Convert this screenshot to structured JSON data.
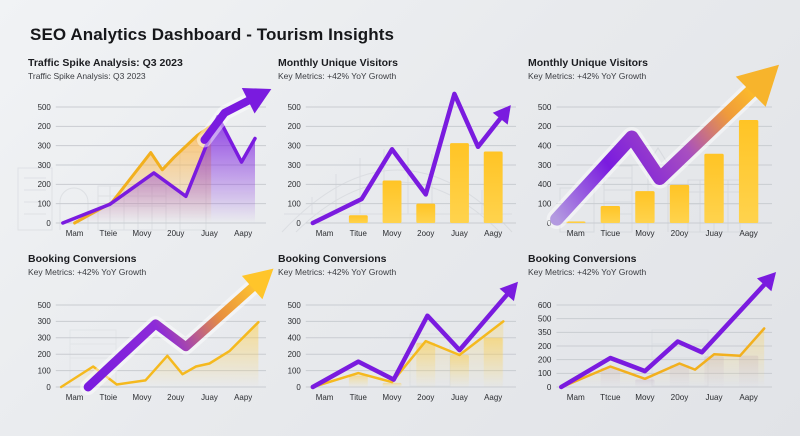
{
  "page": {
    "title": "SEO Analytics Dashboard - Tourism Insights"
  },
  "palette": {
    "purple": "#7a1bdf",
    "gold": "#ffc425",
    "goldDeep": "#f2b01e",
    "grid": "#c9ccd1",
    "axisText": "#2a2c30",
    "background": "#e8eaed"
  },
  "chart_data": [
    {
      "type": "area",
      "title": "Traffic Spike Analysis: Q3 2023",
      "subtitle": "Traffic Spike Analysis: Q3 2023",
      "y_labels": [
        "500",
        "200",
        "300",
        "300",
        "200",
        "100",
        "0"
      ],
      "x_labels": [
        "Mam",
        "Tteie",
        "Movy",
        "20uy",
        "Juay",
        "Aapy"
      ],
      "ylim": [
        0,
        600
      ],
      "series": [
        {
          "name": "gold-area",
          "kind": "area",
          "color": "#f2b01e",
          "lw": 3,
          "fill": "#ffb341",
          "fillop": 0.75,
          "x": [
            0,
            1.1,
            2.26,
            2.6,
            2.95,
            3.64,
            4.05
          ],
          "y": [
            0,
            105,
            364,
            275,
            340,
            453,
            502
          ]
        },
        {
          "name": "purple-area",
          "kind": "area",
          "color": "#7a1bdf",
          "lw": 3.5,
          "fill": "#7a1bdf",
          "fillop": 0.82,
          "x": [
            -0.35,
            1.05,
            2.35,
            3.3,
            4.25,
            4.95,
            5.35
          ],
          "y": [
            0,
            97,
            259,
            138,
            550,
            315,
            437
          ]
        },
        {
          "name": "purple-arrow",
          "kind": "line",
          "color": "#7a1bdf",
          "lw": 8,
          "arrow": true,
          "halo": true,
          "x": [
            3.85,
            4.45,
            5.35
          ],
          "y": [
            430,
            570,
            650
          ]
        }
      ]
    },
    {
      "type": "bar+line",
      "title": "Monthly Unique Visitors",
      "subtitle": "Key Metrics: +42% YoY Growth",
      "y_labels": [
        "500",
        "200",
        "300",
        "300",
        "200",
        "100",
        "0"
      ],
      "x_labels": [
        "Mam",
        "Titue",
        "Movy",
        "2ooy",
        "Juay",
        "Aagy"
      ],
      "ylim": [
        0,
        600
      ],
      "series": [
        {
          "name": "gold-bars",
          "kind": "bars",
          "color": "#ffc425",
          "color2": "#ffd34d",
          "fade": 1,
          "values": [
            0,
            40,
            220,
            100,
            413,
            370
          ]
        },
        {
          "name": "purple-line-arrow",
          "kind": "line",
          "color": "#7a1bdf",
          "lw": 4.5,
          "arrow": true,
          "x": [
            -0.35,
            1.1,
            2.0,
            3.0,
            3.85,
            4.55,
            5.3
          ],
          "y": [
            0,
            124,
            381,
            148,
            668,
            394,
            560
          ]
        }
      ]
    },
    {
      "type": "bar+arrow",
      "title": "Monthly Unique Visitors",
      "subtitle": "Key Metrics: +42% YoY Growth",
      "y_labels": [
        "500",
        "200",
        "400",
        "300",
        "400",
        "100",
        "0"
      ],
      "x_labels": [
        "Mam",
        "Ticue",
        "Movy",
        "20oy",
        "Juay",
        "Aagy"
      ],
      "ylim": [
        0,
        600
      ],
      "series": [
        {
          "name": "gold-bars",
          "kind": "bars",
          "color": "#ffc425",
          "color2": "#ffd34d",
          "fade": 1,
          "values": [
            8,
            88,
            165,
            197,
            358,
            533
          ]
        },
        {
          "name": "gradient-arrow",
          "kind": "line",
          "color": "#b39ae0",
          "to": "#ffc425",
          "lw": 13,
          "arrow": true,
          "halo": true,
          "head": "#f7b42c",
          "stops": [
            [
              0,
              "#b39ae0"
            ],
            [
              30,
              "#7a1bdf"
            ],
            [
              60,
              "#a84fc0"
            ],
            [
              82,
              "#ef9a3c"
            ],
            [
              100,
              "#ffc425"
            ]
          ],
          "x": [
            -0.55,
            1.62,
            2.43,
            5.3
          ],
          "y": [
            20,
            445,
            230,
            720
          ]
        }
      ]
    },
    {
      "type": "area+arrow",
      "title": "Booking Conversions",
      "subtitle": "Key Metrics: +42% YoY Growth",
      "y_labels": [
        "500",
        "300",
        "300",
        "200",
        "100",
        "0"
      ],
      "x_labels": [
        "Mam",
        "Ttoie",
        "Movy",
        "2ouy",
        "Juay",
        "Aapy"
      ],
      "ylim": [
        0,
        500
      ],
      "series": [
        {
          "name": "gold-area",
          "kind": "area",
          "color": "#f5b91e",
          "lw": 2.5,
          "fill": "#ffcf4a",
          "fillop": 0.55,
          "x": [
            -0.4,
            0.55,
            1.25,
            2.1,
            2.75,
            3.2,
            3.6,
            4.0,
            4.6,
            5.45
          ],
          "y": [
            0,
            125,
            15,
            40,
            190,
            78,
            125,
            143,
            220,
            395
          ]
        },
        {
          "name": "gradient-arrow",
          "kind": "line",
          "color": "#7a1bdf",
          "to": "#ffc425",
          "lw": 9,
          "arrow": true,
          "halo": true,
          "head": "#ffc52a",
          "stops": [
            [
              0,
              "#7a1bdf"
            ],
            [
              45,
              "#8d2bd8"
            ],
            [
              75,
              "#e8903e"
            ],
            [
              100,
              "#ffc82f"
            ]
          ],
          "x": [
            0.4,
            2.4,
            3.3,
            5.45
          ],
          "y": [
            0,
            385,
            245,
            640
          ]
        }
      ]
    },
    {
      "type": "line+arrow",
      "title": "Booking Conversions",
      "subtitle": "Key Metrics: +42% YoY Growth",
      "y_labels": [
        "500",
        "300",
        "400",
        "200",
        "100",
        "0"
      ],
      "x_labels": [
        "Mam",
        "Titue",
        "Movy",
        "2ooy",
        "Juay",
        "Aagy"
      ],
      "ylim": [
        0,
        500
      ],
      "series": [
        {
          "name": "gold-soft-bars",
          "kind": "bars",
          "color": "#ffc425",
          "color2": "#ffda63",
          "opacity": 0.4,
          "fade": 0.05,
          "values": [
            0,
            70,
            25,
            270,
            195,
            300
          ]
        },
        {
          "name": "gold-line",
          "kind": "area",
          "color": "#f5b91e",
          "lw": 2.5,
          "fill": "#ffd34d",
          "fillop": 0.3,
          "x": [
            -0.35,
            1.0,
            2.0,
            3.0,
            4.0,
            5.3
          ],
          "y": [
            0,
            85,
            30,
            280,
            195,
            400
          ]
        },
        {
          "name": "purple-line-arrow",
          "kind": "line",
          "color": "#7a1bdf",
          "lw": 4.5,
          "arrow": true,
          "x": [
            -0.35,
            1.0,
            2.05,
            3.05,
            4.0,
            5.5
          ],
          "y": [
            0,
            155,
            45,
            435,
            225,
            585
          ]
        }
      ]
    },
    {
      "type": "line+arrow",
      "title": "Booking Conversions",
      "subtitle": "Key Metrics: +42% YoY Growth",
      "y_labels": [
        "600",
        "500",
        "350",
        "200",
        "200",
        "100",
        "0"
      ],
      "x_labels": [
        "Mam",
        "Ttcue",
        "Movy",
        "20oy",
        "Juay",
        "Aapy"
      ],
      "ylim": [
        0,
        600
      ],
      "series": [
        {
          "name": "mauve-soft-bars",
          "kind": "bars",
          "color": "#b49ec4",
          "color2": "#c9b6d6",
          "opacity": 0.25,
          "fade": 0.1,
          "values": [
            0,
            140,
            55,
            160,
            225,
            230
          ]
        },
        {
          "name": "gold-line",
          "kind": "area",
          "color": "#f2b01e",
          "lw": 2.5,
          "fill": "#ffd34d",
          "fillop": 0.35,
          "x": [
            -0.4,
            1.0,
            2.0,
            3.0,
            3.45,
            4.0,
            4.75,
            5.45
          ],
          "y": [
            0,
            150,
            60,
            172,
            127,
            239,
            228,
            428
          ]
        },
        {
          "name": "purple-line-arrow",
          "kind": "line",
          "color": "#7a1bdf",
          "lw": 4.5,
          "arrow": true,
          "x": [
            -0.42,
            1.0,
            2.0,
            2.95,
            3.65,
            5.55
          ],
          "y": [
            0,
            212,
            116,
            333,
            254,
            775
          ]
        }
      ]
    }
  ]
}
